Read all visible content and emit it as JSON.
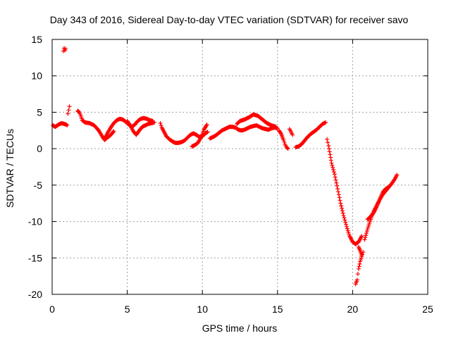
{
  "chart_data": {
    "type": "scatter",
    "title": "Day 343 of 2016, Sidereal Day-to-day VTEC variation (SDTVAR) for receiver savo",
    "xlabel": "GPS time / hours",
    "ylabel": "SDTVAR / TECUs",
    "xlim": [
      0,
      25
    ],
    "ylim": [
      -20,
      15
    ],
    "xticks": [
      0,
      5,
      10,
      15,
      20,
      25
    ],
    "yticks": [
      -20,
      -15,
      -10,
      -5,
      0,
      5,
      10,
      15
    ],
    "grid": true,
    "marker": "+",
    "color": "#ff0000",
    "series": [
      {
        "name": "SDTVAR",
        "x": [
          0.05,
          0.2,
          0.35,
          0.5,
          0.65,
          0.8,
          0.95,
          1.0
        ],
        "y": [
          3.2,
          3.0,
          3.2,
          3.4,
          3.5,
          3.4,
          3.3,
          3.2
        ]
      },
      {
        "name": "SDTVAR",
        "x": [
          0.75,
          0.8,
          0.85,
          0.9
        ],
        "y": [
          13.4,
          13.8,
          13.5,
          13.7
        ]
      },
      {
        "name": "SDTVAR",
        "x": [
          1.05,
          1.1,
          1.15
        ],
        "y": [
          4.8,
          5.3,
          5.8
        ]
      },
      {
        "name": "SDTVAR",
        "x": [
          1.7,
          1.8,
          1.9,
          2.0,
          2.2,
          2.5,
          2.8,
          3.1,
          3.3,
          3.45,
          3.55,
          3.7,
          3.9,
          4.1,
          4.3,
          4.5,
          4.7,
          4.9,
          5.1,
          5.3,
          5.5,
          5.7,
          5.9,
          6.1,
          6.3,
          6.5,
          6.7
        ],
        "y": [
          5.2,
          5.0,
          4.6,
          3.9,
          3.6,
          3.5,
          3.2,
          2.5,
          1.8,
          1.3,
          1.6,
          2.2,
          2.9,
          3.5,
          3.9,
          4.1,
          4.0,
          3.7,
          3.3,
          3.0,
          3.3,
          3.8,
          4.1,
          4.2,
          4.1,
          3.9,
          3.8
        ]
      },
      {
        "name": "SDTVAR",
        "x": [
          3.5,
          3.65,
          3.8,
          3.95,
          4.1
        ],
        "y": [
          1.2,
          1.5,
          1.7,
          2.0,
          2.4
        ]
      },
      {
        "name": "SDTVAR",
        "x": [
          5.0,
          5.2,
          5.4,
          5.6,
          5.8,
          6.0,
          6.2,
          6.4,
          6.6,
          6.8
        ],
        "y": [
          3.8,
          3.2,
          2.4,
          1.9,
          2.5,
          3.0,
          3.2,
          3.4,
          3.5,
          3.6
        ]
      },
      {
        "name": "SDTVAR",
        "x": [
          7.2,
          7.3,
          7.45,
          7.6,
          7.8,
          8.0,
          8.2,
          8.4,
          8.6,
          8.8,
          9.0,
          9.2,
          9.4,
          9.6,
          9.8,
          10.0,
          10.2,
          10.35
        ],
        "y": [
          3.5,
          2.9,
          2.3,
          1.7,
          1.3,
          1.0,
          0.8,
          0.8,
          0.9,
          1.1,
          1.5,
          1.9,
          2.1,
          1.9,
          1.6,
          1.7,
          2.1,
          2.3
        ]
      },
      {
        "name": "SDTVAR",
        "x": [
          9.3,
          9.5,
          9.7,
          9.9,
          10.1,
          10.3
        ],
        "y": [
          0.3,
          0.5,
          0.8,
          1.5,
          2.6,
          3.3
        ]
      },
      {
        "name": "SDTVAR",
        "x": [
          10.5,
          10.8,
          11.0,
          11.3,
          11.6,
          11.8,
          12.0,
          12.2,
          12.4,
          12.6,
          12.8,
          13.0,
          13.2,
          13.4,
          13.6,
          13.8,
          14.0,
          14.2,
          14.4,
          14.6,
          14.8,
          15.0
        ],
        "y": [
          1.4,
          1.7,
          2.0,
          2.5,
          2.8,
          3.0,
          3.0,
          2.9,
          2.6,
          2.5,
          2.6,
          2.8,
          3.0,
          3.1,
          3.2,
          3.0,
          2.8,
          2.7,
          2.6,
          2.8,
          2.9,
          2.8
        ]
      },
      {
        "name": "SDTVAR",
        "x": [
          12.3,
          12.5,
          12.8,
          13.1,
          13.4,
          13.7,
          14.0,
          14.3,
          14.6,
          14.9
        ],
        "y": [
          3.4,
          3.8,
          4.0,
          4.3,
          4.7,
          4.5,
          4.0,
          3.5,
          3.2,
          3.0
        ]
      },
      {
        "name": "SDTVAR",
        "x": [
          15.1,
          15.25,
          15.4,
          15.5,
          15.6,
          15.7
        ],
        "y": [
          2.5,
          2.0,
          1.2,
          0.6,
          0.2,
          0.0
        ]
      },
      {
        "name": "SDTVAR",
        "x": [
          15.8,
          15.9,
          16.0
        ],
        "y": [
          2.7,
          2.3,
          1.9
        ]
      },
      {
        "name": "SDTVAR",
        "x": [
          16.2,
          16.4,
          16.6,
          16.8,
          17.0,
          17.2,
          17.4,
          17.6,
          17.8,
          18.0,
          18.2
        ],
        "y": [
          0.2,
          0.3,
          0.6,
          1.1,
          1.6,
          2.0,
          2.3,
          2.6,
          3.0,
          3.4,
          3.6
        ]
      },
      {
        "name": "SDTVAR",
        "x": [
          18.3,
          18.4,
          18.5,
          18.6,
          18.8,
          19.0,
          19.2,
          19.4,
          19.6,
          19.8,
          20.0,
          20.2,
          20.4,
          20.6
        ],
        "y": [
          1.3,
          0.4,
          -0.8,
          -2.0,
          -3.5,
          -5.5,
          -7.5,
          -9.2,
          -10.7,
          -12.0,
          -12.8,
          -13.1,
          -12.8,
          -12.0
        ]
      },
      {
        "name": "SDTVAR",
        "x": [
          20.2,
          20.3,
          20.35,
          20.4,
          20.5,
          20.6,
          20.7
        ],
        "y": [
          -18.6,
          -18.0,
          -17.2,
          -16.5,
          -15.5,
          -14.8,
          -14.2
        ]
      },
      {
        "name": "SDTVAR",
        "x": [
          20.4,
          20.5,
          20.6
        ],
        "y": [
          -13.5,
          -14.0,
          -14.6
        ]
      },
      {
        "name": "SDTVAR",
        "x": [
          20.8,
          21.0,
          21.2,
          21.4,
          21.6,
          21.8,
          22.0,
          22.2,
          22.4,
          22.6,
          22.8,
          22.95
        ],
        "y": [
          -12.5,
          -11.0,
          -9.7,
          -8.6,
          -7.8,
          -7.0,
          -6.3,
          -5.8,
          -5.3,
          -4.8,
          -4.2,
          -3.6
        ]
      },
      {
        "name": "SDTVAR",
        "x": [
          21.0,
          21.2,
          21.4,
          21.6,
          21.8,
          22.0,
          22.2,
          22.4
        ],
        "y": [
          -9.7,
          -9.3,
          -8.8,
          -8.0,
          -7.0,
          -6.0,
          -5.5,
          -5.3
        ]
      }
    ]
  }
}
